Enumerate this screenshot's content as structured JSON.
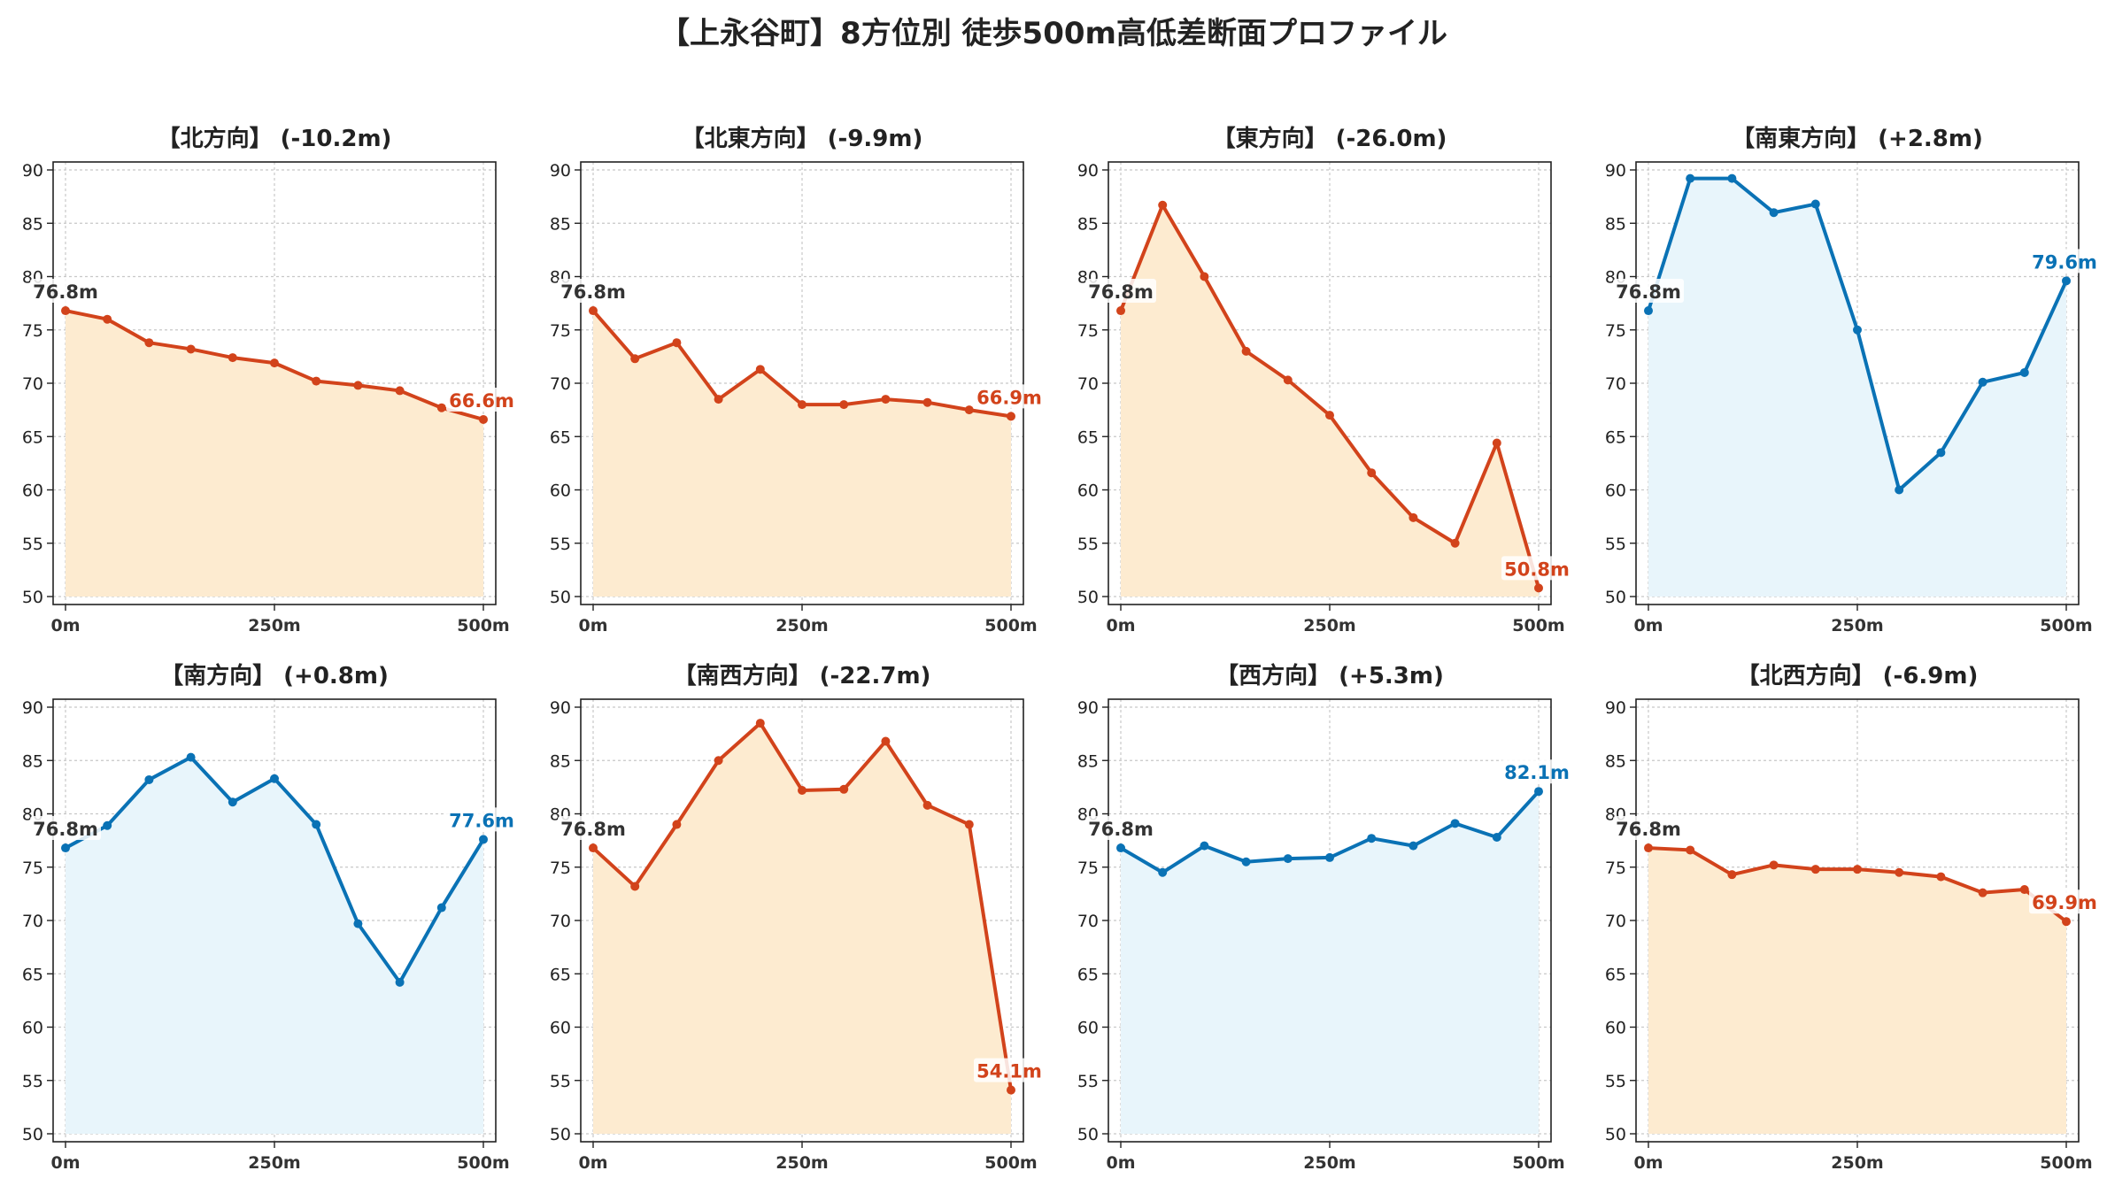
{
  "title": "【上永谷町】8方位別 徒歩500m高低差断面プロファイル",
  "colors": {
    "down_line": "#D2431B",
    "down_fill": "#FDEBD0",
    "up_line": "#0A72B5",
    "up_fill": "#E8F5FB",
    "grid": "#c8c8c8",
    "axis": "#222222"
  },
  "chart_data": [
    {
      "type": "area",
      "title": "【北方向】 (-10.2m)",
      "trend": "down",
      "x": [
        0,
        50,
        100,
        150,
        200,
        250,
        300,
        350,
        400,
        450,
        500
      ],
      "values": [
        76.8,
        76.0,
        73.8,
        73.2,
        72.4,
        71.9,
        70.2,
        69.8,
        69.3,
        67.7,
        66.6
      ],
      "start_label": "76.8m",
      "end_label": "66.6m",
      "ylim": [
        50,
        90
      ],
      "yticks": [
        50,
        55,
        60,
        65,
        70,
        75,
        80,
        85,
        90
      ],
      "xticks": [
        "0m",
        "250m",
        "500m"
      ],
      "grid": true
    },
    {
      "type": "area",
      "title": "【北東方向】 (-9.9m)",
      "trend": "down",
      "x": [
        0,
        50,
        100,
        150,
        200,
        250,
        300,
        350,
        400,
        450,
        500
      ],
      "values": [
        76.8,
        72.3,
        73.8,
        68.5,
        71.3,
        68.0,
        68.0,
        68.5,
        68.2,
        67.5,
        66.9
      ],
      "start_label": "76.8m",
      "end_label": "66.9m",
      "ylim": [
        50,
        90
      ],
      "yticks": [
        50,
        55,
        60,
        65,
        70,
        75,
        80,
        85,
        90
      ],
      "xticks": [
        "0m",
        "250m",
        "500m"
      ],
      "grid": true
    },
    {
      "type": "area",
      "title": "【東方向】 (-26.0m)",
      "trend": "down",
      "x": [
        0,
        50,
        100,
        150,
        200,
        250,
        300,
        350,
        400,
        450,
        500
      ],
      "values": [
        76.8,
        86.7,
        80.0,
        73.0,
        70.3,
        67.0,
        61.6,
        57.4,
        55.0,
        64.4,
        50.8
      ],
      "start_label": "76.8m",
      "end_label": "50.8m",
      "ylim": [
        50,
        90
      ],
      "yticks": [
        50,
        55,
        60,
        65,
        70,
        75,
        80,
        85,
        90
      ],
      "xticks": [
        "0m",
        "250m",
        "500m"
      ],
      "grid": true
    },
    {
      "type": "area",
      "title": "【南東方向】 (+2.8m)",
      "trend": "up",
      "x": [
        0,
        50,
        100,
        150,
        200,
        250,
        300,
        350,
        400,
        450,
        500
      ],
      "values": [
        76.8,
        89.2,
        89.2,
        86.0,
        86.8,
        75.0,
        60.0,
        63.5,
        70.1,
        71.0,
        79.6
      ],
      "start_label": "76.8m",
      "end_label": "79.6m",
      "ylim": [
        50,
        90
      ],
      "yticks": [
        50,
        55,
        60,
        65,
        70,
        75,
        80,
        85,
        90
      ],
      "xticks": [
        "0m",
        "250m",
        "500m"
      ],
      "grid": true
    },
    {
      "type": "area",
      "title": "【南方向】 (+0.8m)",
      "trend": "up",
      "x": [
        0,
        50,
        100,
        150,
        200,
        250,
        300,
        350,
        400,
        450,
        500
      ],
      "values": [
        76.8,
        78.9,
        83.2,
        85.3,
        81.1,
        83.3,
        79.0,
        69.7,
        64.2,
        71.2,
        77.6
      ],
      "start_label": "76.8m",
      "end_label": "77.6m",
      "ylim": [
        50,
        90
      ],
      "yticks": [
        50,
        55,
        60,
        65,
        70,
        75,
        80,
        85,
        90
      ],
      "xticks": [
        "0m",
        "250m",
        "500m"
      ],
      "grid": true
    },
    {
      "type": "area",
      "title": "【南西方向】 (-22.7m)",
      "trend": "down",
      "x": [
        0,
        50,
        100,
        150,
        200,
        250,
        300,
        350,
        400,
        450,
        500
      ],
      "values": [
        76.8,
        73.2,
        79.0,
        85.0,
        88.5,
        82.2,
        82.3,
        86.8,
        80.8,
        79.0,
        54.1
      ],
      "start_label": "76.8m",
      "end_label": "54.1m",
      "ylim": [
        50,
        90
      ],
      "yticks": [
        50,
        55,
        60,
        65,
        70,
        75,
        80,
        85,
        90
      ],
      "xticks": [
        "0m",
        "250m",
        "500m"
      ],
      "grid": true
    },
    {
      "type": "area",
      "title": "【西方向】 (+5.3m)",
      "trend": "up",
      "x": [
        0,
        50,
        100,
        150,
        200,
        250,
        300,
        350,
        400,
        450,
        500
      ],
      "values": [
        76.8,
        74.5,
        77.0,
        75.5,
        75.8,
        75.9,
        77.7,
        77.0,
        79.1,
        77.8,
        82.1
      ],
      "start_label": "76.8m",
      "end_label": "82.1m",
      "ylim": [
        50,
        90
      ],
      "yticks": [
        50,
        55,
        60,
        65,
        70,
        75,
        80,
        85,
        90
      ],
      "xticks": [
        "0m",
        "250m",
        "500m"
      ],
      "grid": true
    },
    {
      "type": "area",
      "title": "【北西方向】 (-6.9m)",
      "trend": "down",
      "x": [
        0,
        50,
        100,
        150,
        200,
        250,
        300,
        350,
        400,
        450,
        500
      ],
      "values": [
        76.8,
        76.6,
        74.3,
        75.2,
        74.8,
        74.8,
        74.5,
        74.1,
        72.6,
        72.9,
        69.9
      ],
      "start_label": "76.8m",
      "end_label": "69.9m",
      "ylim": [
        50,
        90
      ],
      "yticks": [
        50,
        55,
        60,
        65,
        70,
        75,
        80,
        85,
        90
      ],
      "xticks": [
        "0m",
        "250m",
        "500m"
      ],
      "grid": true
    }
  ]
}
